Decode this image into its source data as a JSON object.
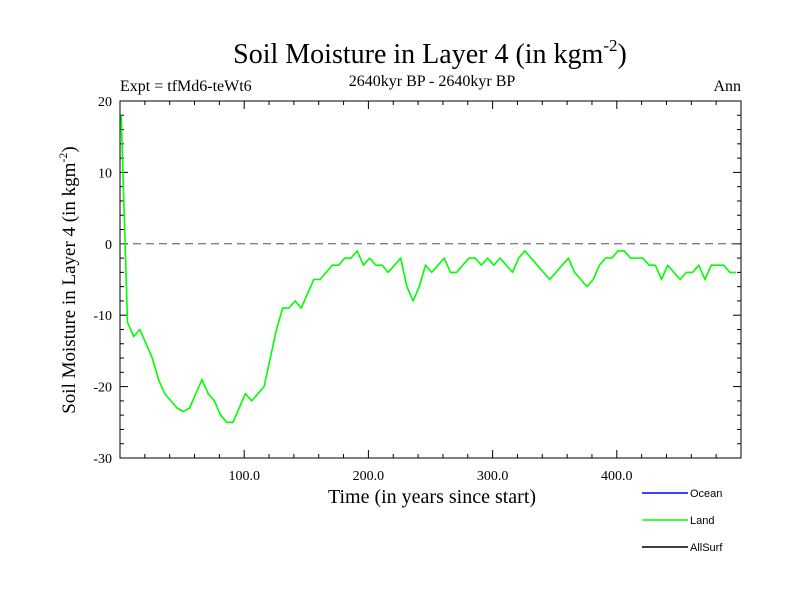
{
  "chart_data": {
    "type": "line",
    "title_main": "Soil Moisture in Layer 4 (in kgm",
    "title_sup": "-2",
    "title_close": ")",
    "subtitle_left": "Expt = tfMd6-teWt6",
    "subtitle_center": "2640kyr BP - 2640kyr BP",
    "subtitle_right": "Ann",
    "xlabel": "Time (in years since start)",
    "ylabel_main": "Soil Moisture in Layer 4 (in kgm",
    "ylabel_sup": "-2",
    "ylabel_close": ")",
    "xlim": [
      0,
      500
    ],
    "ylim": [
      -30,
      20
    ],
    "xticks": [
      100,
      200,
      300,
      400
    ],
    "xtick_labels": [
      "100.0",
      "200.0",
      "300.0",
      "400.0"
    ],
    "yticks": [
      20,
      10,
      0,
      -10,
      -20,
      -30
    ],
    "ytick_labels": [
      "20",
      "10",
      "0",
      "-10",
      "-20",
      "-30"
    ],
    "reference_line": 0,
    "legend": [
      {
        "name": "Ocean",
        "color": "#0000ff"
      },
      {
        "name": "Land",
        "color": "#00ff00"
      },
      {
        "name": "AllSurf",
        "color": "#000000"
      }
    ],
    "series": [
      {
        "name": "Land",
        "color": "#00ff00",
        "x_start": 1,
        "x_step": 5,
        "values": [
          18,
          -11,
          -13,
          -12,
          -14,
          -16,
          -19,
          -21,
          -22,
          -23,
          -23.5,
          -23,
          -21,
          -19,
          -21,
          -22,
          -24,
          -25,
          -25,
          -23,
          -21,
          -22,
          -21,
          -20,
          -16,
          -12,
          -9,
          -9,
          -8,
          -9,
          -7,
          -5,
          -5,
          -4,
          -3,
          -3,
          -2,
          -2,
          -1,
          -3,
          -2,
          -3,
          -3,
          -4,
          -3,
          -2,
          -6,
          -8,
          -6,
          -3,
          -4,
          -3,
          -2,
          -4,
          -4,
          -3,
          -2,
          -2,
          -3,
          -2,
          -3,
          -2,
          -3,
          -4,
          -2,
          -1,
          -2,
          -3,
          -4,
          -5,
          -4,
          -3,
          -2,
          -4,
          -5,
          -6,
          -5,
          -3,
          -2,
          -2,
          -1,
          -1,
          -2,
          -2,
          -2,
          -3,
          -3,
          -5,
          -3,
          -4,
          -5,
          -4,
          -4,
          -3,
          -5,
          -3,
          -3,
          -3,
          -4,
          -4
        ]
      }
    ]
  }
}
